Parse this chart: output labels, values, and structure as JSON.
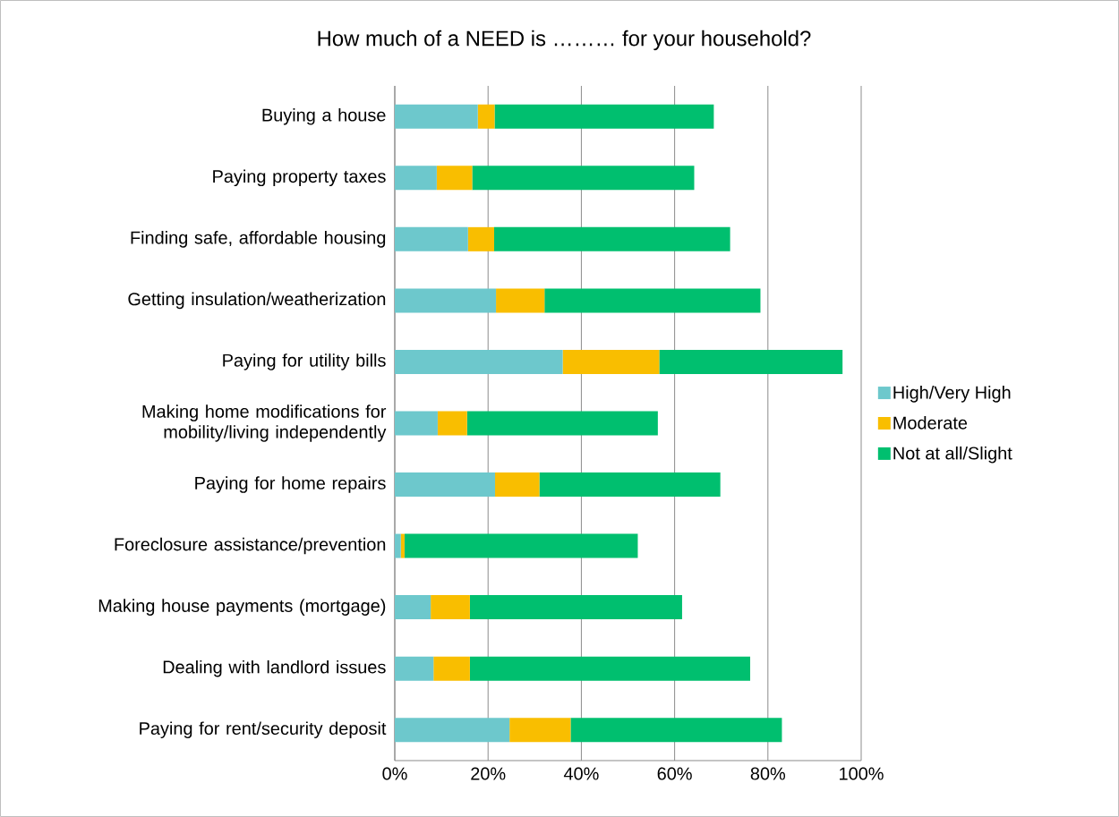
{
  "chart_data": {
    "type": "bar",
    "orientation": "horizontal",
    "stacked": true,
    "title": "How much of a NEED is ……… for your household?",
    "categories": [
      "Buying a house",
      "Paying property taxes",
      "Finding safe, affordable housing",
      "Getting insulation/weatherization",
      "Paying for utility bills",
      "Making home modifications for mobility/living independently",
      "Paying for home repairs",
      "Foreclosure assistance/prevention",
      "Making house payments (mortgage)",
      "Dealing with landlord issues",
      "Paying for rent/security deposit"
    ],
    "series": [
      {
        "name": "High/Very High",
        "color": "#6dc8cc",
        "values": [
          17.8,
          9.0,
          15.7,
          21.7,
          36.0,
          9.2,
          21.5,
          1.3,
          7.7,
          8.3,
          24.6
        ]
      },
      {
        "name": "Moderate",
        "color": "#f9be00",
        "values": [
          3.6,
          7.6,
          5.6,
          10.4,
          20.7,
          6.3,
          9.5,
          0.8,
          8.4,
          7.8,
          13.1
        ]
      },
      {
        "name": "Not at all/Slight",
        "color": "#00bf6f",
        "values": [
          47.0,
          47.6,
          50.6,
          46.3,
          39.3,
          40.9,
          38.8,
          50.0,
          45.5,
          60.1,
          45.3
        ]
      }
    ],
    "xlim": [
      0,
      100
    ],
    "xticks": [
      {
        "value": 0,
        "label": "0%"
      },
      {
        "value": 20,
        "label": "20%"
      },
      {
        "value": 40,
        "label": "40%"
      },
      {
        "value": 60,
        "label": "60%"
      },
      {
        "value": 80,
        "label": "80%"
      },
      {
        "value": 100,
        "label": "100%"
      }
    ],
    "grid": "x",
    "legend": "right"
  }
}
